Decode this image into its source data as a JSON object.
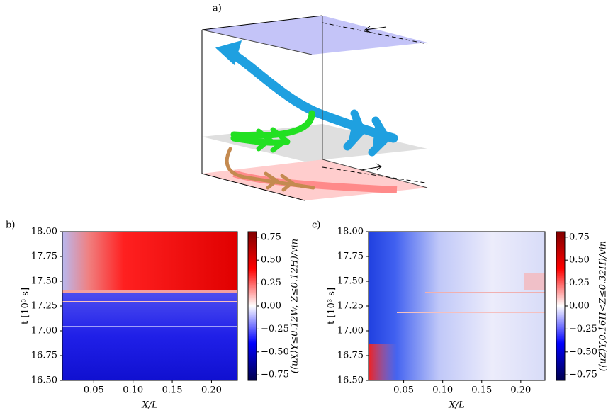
{
  "diagram": {
    "label": "a)"
  },
  "chart_data": [
    {
      "type": "heatmap",
      "panel_label": "b)",
      "xlabel": "X/L",
      "ylabel": "t [10³ s]",
      "colorbar_label": "(⟨uX⟩Y≤0.12W, Z≤0.12H)/vin",
      "xlim": [
        0.01,
        0.233
      ],
      "xticks": [
        0.05,
        {
          "value": 0.1,
          "label": "0.10"
        },
        0.15,
        {
          "value": 0.2,
          "label": "0.20"
        }
      ],
      "ylim": [
        16.5,
        18
      ],
      "yticks": [
        {
          "value": 16.5,
          "label": "16.50"
        },
        16.75,
        {
          "value": 17,
          "label": "17.00"
        },
        17.25,
        {
          "value": 17.5,
          "label": "17.50"
        },
        17.75,
        {
          "value": 18,
          "label": "18.00"
        }
      ],
      "clim": [
        -0.81,
        0.81
      ],
      "cticks": [
        {
          "value": -0.75,
          "label": "−0.75"
        },
        {
          "value": -0.5,
          "label": "−0.50"
        },
        {
          "value": -0.25,
          "label": "−0.25"
        },
        {
          "value": 0,
          "label": "0.00"
        },
        0.25,
        {
          "value": 0.5,
          "label": "0.50"
        },
        0.75
      ],
      "colormap": "seismic"
    },
    {
      "type": "heatmap",
      "panel_label": "c)",
      "xlabel": "X/L",
      "ylabel": "t [10³ s]",
      "colorbar_label": "(⟨uZ⟩Y,0.16H<Z≤0.32H)/vin",
      "xlim": [
        0.005,
        0.231
      ],
      "xticks": [
        0.05,
        {
          "value": 0.1,
          "label": "0.10"
        },
        0.15,
        {
          "value": 0.2,
          "label": "0.20"
        }
      ],
      "ylim": [
        16.5,
        18
      ],
      "yticks": [
        {
          "value": 16.5,
          "label": "16.50"
        },
        16.75,
        {
          "value": 17,
          "label": "17.00"
        },
        17.25,
        {
          "value": 17.5,
          "label": "17.50"
        },
        17.75,
        {
          "value": 18,
          "label": "18.00"
        }
      ],
      "clim": [
        -0.81,
        0.81
      ],
      "cticks": [
        {
          "value": -0.75,
          "label": "−0.75"
        },
        {
          "value": -0.5,
          "label": "−0.50"
        },
        {
          "value": -0.25,
          "label": "−0.25"
        },
        {
          "value": 0,
          "label": "0.00"
        },
        0.25,
        {
          "value": 0.5,
          "label": "0.50"
        },
        0.75
      ],
      "colormap": "seismic"
    }
  ]
}
